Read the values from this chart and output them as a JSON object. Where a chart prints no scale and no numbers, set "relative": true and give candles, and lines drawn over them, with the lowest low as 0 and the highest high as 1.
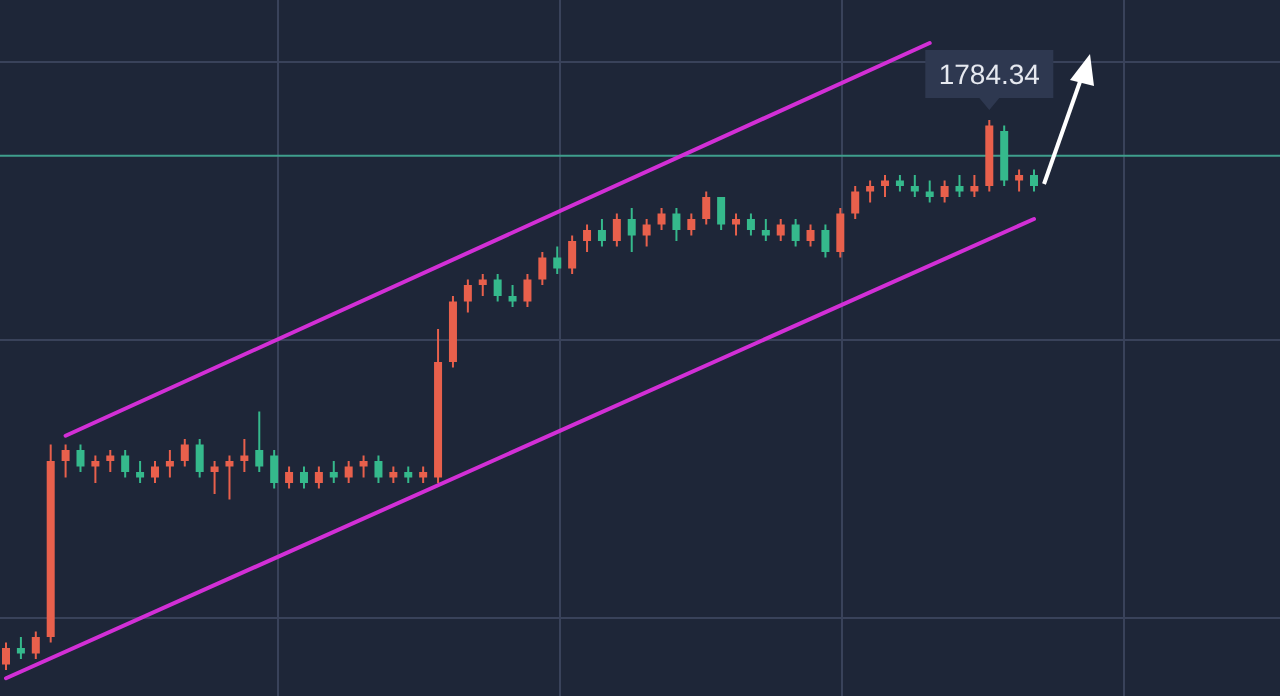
{
  "chart_data": {
    "type": "candlestick",
    "relative": true,
    "grid": true,
    "categories": [
      null,
      null,
      null,
      null,
      null,
      null,
      null,
      null,
      null,
      null,
      null,
      null,
      null,
      null,
      null,
      null,
      null,
      null,
      null,
      null,
      null,
      null,
      null,
      null,
      null,
      null,
      null,
      null,
      null,
      null,
      null,
      null,
      null,
      null,
      null,
      null,
      null,
      null,
      null,
      null,
      null,
      null,
      null,
      null,
      null,
      null,
      null,
      null,
      null,
      null,
      null,
      null,
      null,
      null,
      null,
      null,
      null,
      null,
      null,
      null,
      null,
      null,
      null,
      null,
      null,
      null,
      null,
      null,
      null,
      null
    ],
    "ohlc": [
      [
        0.01,
        0.05,
        0,
        0.04
      ],
      [
        0.04,
        0.06,
        0.02,
        0.03
      ],
      [
        0.03,
        0.07,
        0.02,
        0.06
      ],
      [
        0.06,
        0.41,
        0.05,
        0.38
      ],
      [
        0.38,
        0.41,
        0.35,
        0.4
      ],
      [
        0.4,
        0.41,
        0.36,
        0.37
      ],
      [
        0.37,
        0.39,
        0.34,
        0.38
      ],
      [
        0.38,
        0.4,
        0.36,
        0.39
      ],
      [
        0.39,
        0.4,
        0.35,
        0.36
      ],
      [
        0.36,
        0.38,
        0.34,
        0.35
      ],
      [
        0.35,
        0.38,
        0.34,
        0.37
      ],
      [
        0.37,
        0.4,
        0.35,
        0.38
      ],
      [
        0.38,
        0.42,
        0.37,
        0.41
      ],
      [
        0.41,
        0.42,
        0.35,
        0.36
      ],
      [
        0.36,
        0.38,
        0.32,
        0.37
      ],
      [
        0.37,
        0.39,
        0.31,
        0.38
      ],
      [
        0.38,
        0.42,
        0.36,
        0.39
      ],
      [
        0.4,
        0.47,
        0.36,
        0.37
      ],
      [
        0.39,
        0.4,
        0.33,
        0.34
      ],
      [
        0.34,
        0.37,
        0.33,
        0.36
      ],
      [
        0.36,
        0.37,
        0.33,
        0.34
      ],
      [
        0.34,
        0.37,
        0.33,
        0.36
      ],
      [
        0.36,
        0.38,
        0.34,
        0.35
      ],
      [
        0.35,
        0.38,
        0.34,
        0.37
      ],
      [
        0.37,
        0.39,
        0.35,
        0.38
      ],
      [
        0.38,
        0.39,
        0.34,
        0.35
      ],
      [
        0.35,
        0.37,
        0.34,
        0.36
      ],
      [
        0.36,
        0.37,
        0.34,
        0.35
      ],
      [
        0.35,
        0.37,
        0.34,
        0.36
      ],
      [
        0.35,
        0.62,
        0.34,
        0.56
      ],
      [
        0.56,
        0.68,
        0.55,
        0.67
      ],
      [
        0.67,
        0.71,
        0.65,
        0.7
      ],
      [
        0.7,
        0.72,
        0.68,
        0.71
      ],
      [
        0.71,
        0.72,
        0.67,
        0.68
      ],
      [
        0.68,
        0.7,
        0.66,
        0.67
      ],
      [
        0.67,
        0.72,
        0.66,
        0.71
      ],
      [
        0.71,
        0.76,
        0.7,
        0.75
      ],
      [
        0.75,
        0.77,
        0.72,
        0.73
      ],
      [
        0.73,
        0.79,
        0.72,
        0.78
      ],
      [
        0.78,
        0.81,
        0.76,
        0.8
      ],
      [
        0.8,
        0.82,
        0.77,
        0.78
      ],
      [
        0.78,
        0.83,
        0.77,
        0.82
      ],
      [
        0.82,
        0.84,
        0.76,
        0.79
      ],
      [
        0.79,
        0.82,
        0.77,
        0.81
      ],
      [
        0.81,
        0.84,
        0.8,
        0.83
      ],
      [
        0.83,
        0.84,
        0.78,
        0.8
      ],
      [
        0.8,
        0.83,
        0.79,
        0.82
      ],
      [
        0.82,
        0.87,
        0.81,
        0.86
      ],
      [
        0.86,
        0.86,
        0.8,
        0.81
      ],
      [
        0.81,
        0.83,
        0.79,
        0.82
      ],
      [
        0.82,
        0.83,
        0.79,
        0.8
      ],
      [
        0.8,
        0.82,
        0.78,
        0.79
      ],
      [
        0.79,
        0.82,
        0.78,
        0.81
      ],
      [
        0.81,
        0.82,
        0.77,
        0.78
      ],
      [
        0.78,
        0.81,
        0.77,
        0.8
      ],
      [
        0.8,
        0.81,
        0.75,
        0.76
      ],
      [
        0.76,
        0.84,
        0.75,
        0.83
      ],
      [
        0.83,
        0.88,
        0.82,
        0.87
      ],
      [
        0.87,
        0.89,
        0.85,
        0.88
      ],
      [
        0.88,
        0.9,
        0.86,
        0.89
      ],
      [
        0.89,
        0.9,
        0.87,
        0.88
      ],
      [
        0.88,
        0.9,
        0.86,
        0.87
      ],
      [
        0.87,
        0.89,
        0.85,
        0.86
      ],
      [
        0.86,
        0.89,
        0.85,
        0.88
      ],
      [
        0.88,
        0.9,
        0.86,
        0.87
      ],
      [
        0.87,
        0.9,
        0.86,
        0.88
      ],
      [
        0.88,
        1,
        0.87,
        0.99
      ],
      [
        0.98,
        0.99,
        0.88,
        0.89
      ],
      [
        0.89,
        0.91,
        0.87,
        0.9
      ],
      [
        0.9,
        0.91,
        0.87,
        0.88
      ]
    ],
    "series": [
      {
        "type": "line",
        "color": "#d22fd6",
        "values": [
          -0.015,
          null,
          null,
          null,
          null,
          null,
          null,
          null,
          null,
          null,
          null,
          null,
          null,
          null,
          null,
          null,
          null,
          null,
          null,
          null,
          null,
          null,
          null,
          null,
          null,
          null,
          null,
          null,
          null,
          null,
          null,
          null,
          null,
          null,
          null,
          null,
          null,
          null,
          null,
          null,
          null,
          null,
          null,
          null,
          null,
          null,
          null,
          null,
          null,
          null,
          null,
          null,
          null,
          null,
          null,
          null,
          null,
          null,
          null,
          null,
          null,
          null,
          null,
          null,
          null,
          null,
          null,
          null,
          null,
          0.82
        ]
      },
      {
        "type": "line",
        "color": "#d22fd6",
        "values": [
          null,
          null,
          null,
          null,
          0.426,
          null,
          null,
          null,
          null,
          null,
          null,
          null,
          null,
          null,
          null,
          null,
          null,
          null,
          null,
          null,
          null,
          null,
          null,
          null,
          null,
          null,
          null,
          null,
          null,
          null,
          null,
          null,
          null,
          null,
          null,
          null,
          null,
          null,
          null,
          null,
          null,
          null,
          null,
          null,
          null,
          null,
          null,
          null,
          null,
          null,
          null,
          null,
          null,
          null,
          null,
          null,
          null,
          null,
          null,
          null,
          null,
          null,
          1.14,
          null,
          null,
          null,
          null,
          null,
          null,
          null
        ]
      }
    ],
    "ref_lines": [
      {
        "axis": "y",
        "value": 0.935,
        "color": "#3f9e8c"
      }
    ],
    "annotations": [
      {
        "text": "1784.34",
        "y": 1
      }
    ]
  }
}
